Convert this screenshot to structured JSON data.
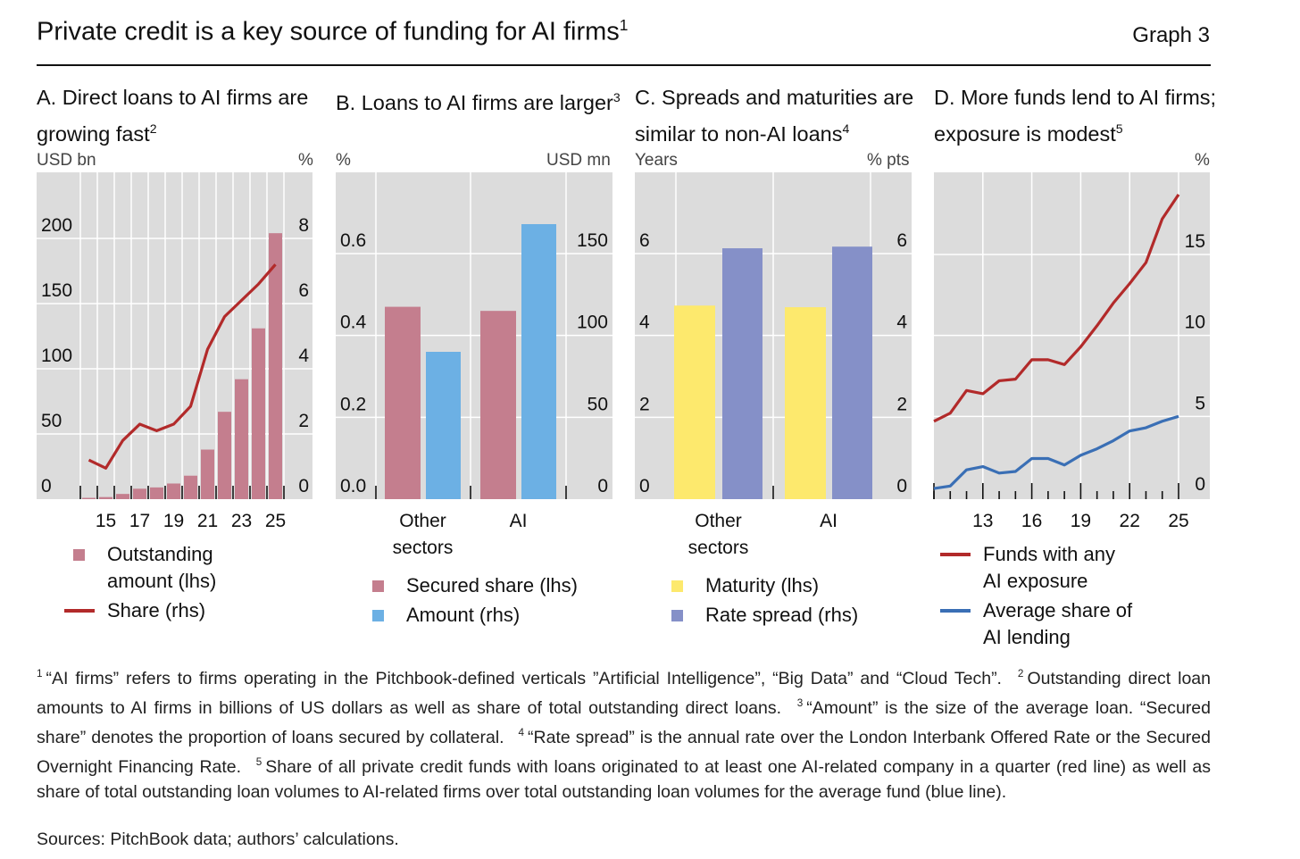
{
  "header": {
    "title": "Private credit is a key source of funding for AI firms",
    "title_sup": "1",
    "graph_label": "Graph 3"
  },
  "colors": {
    "panel_bg": "#dcdcdc",
    "grid": "#ffffff",
    "bar_red": "#c47e8e",
    "bar_blue": "#6cb0e4",
    "bar_yellow": "#fde96d",
    "bar_purple": "#8590c8",
    "line_red": "#b22a2a",
    "line_blue": "#3a6fb5"
  },
  "chart_data": [
    {
      "id": "A",
      "type": "bar+line",
      "title": "A. Direct loans to AI firms are growing fast",
      "title_sup": "2",
      "lhs_unit": "USD bn",
      "rhs_unit": "%",
      "x": [
        14,
        15,
        16,
        17,
        18,
        19,
        20,
        21,
        22,
        23,
        24,
        25
      ],
      "x_tick_labels": [
        "15",
        "17",
        "19",
        "21",
        "23",
        "25"
      ],
      "lhs_ticks": [
        "0",
        "50",
        "100",
        "150",
        "200"
      ],
      "lhs_range": [
        0,
        200
      ],
      "rhs_ticks": [
        "0",
        "2",
        "4",
        "6",
        "8"
      ],
      "rhs_range": [
        0,
        8
      ],
      "series": [
        {
          "name": "Outstanding amount (lhs)",
          "type": "bar",
          "axis": "lhs",
          "values": [
            1,
            1.6,
            4,
            8,
            9,
            12,
            18,
            38,
            67,
            92,
            131,
            204
          ]
        },
        {
          "name": "Share (rhs)",
          "type": "line",
          "axis": "rhs",
          "values": [
            1.2,
            0.95,
            1.8,
            2.3,
            2.1,
            2.3,
            2.85,
            4.6,
            5.6,
            6.1,
            6.6,
            7.2
          ]
        }
      ],
      "legend": [
        "Outstanding amount (lhs)",
        "Share (rhs)"
      ]
    },
    {
      "id": "B",
      "type": "bar",
      "title": "B. Loans to AI firms are larger",
      "title_sup": "3",
      "lhs_unit": "%",
      "rhs_unit": "USD mn",
      "categories": [
        "Other sectors",
        "AI"
      ],
      "lhs_ticks": [
        "0.0",
        "0.2",
        "0.4",
        "0.6"
      ],
      "lhs_range": [
        0,
        0.6
      ],
      "rhs_ticks": [
        "0",
        "50",
        "100",
        "150"
      ],
      "rhs_range": [
        0,
        150
      ],
      "series": [
        {
          "name": "Secured share (lhs)",
          "axis": "lhs",
          "values": [
            0.47,
            0.46
          ]
        },
        {
          "name": "Amount (rhs)",
          "axis": "rhs",
          "values": [
            90,
            168
          ]
        }
      ],
      "legend": [
        "Secured share (lhs)",
        "Amount (rhs)"
      ]
    },
    {
      "id": "C",
      "type": "bar",
      "title": "C. Spreads and maturities are similar to non-AI loans",
      "title_sup": "4",
      "lhs_unit": "Years",
      "rhs_unit": "% pts",
      "categories": [
        "Other sectors",
        "AI"
      ],
      "lhs_ticks": [
        "0",
        "2",
        "4",
        "6"
      ],
      "lhs_range": [
        0,
        6
      ],
      "rhs_ticks": [
        "0",
        "2",
        "4",
        "6"
      ],
      "rhs_range": [
        0,
        6
      ],
      "series": [
        {
          "name": "Maturity (lhs)",
          "axis": "lhs",
          "values": [
            4.73,
            4.69
          ]
        },
        {
          "name": "Rate spread (rhs)",
          "axis": "rhs",
          "values": [
            6.13,
            6.17
          ]
        }
      ],
      "legend": [
        "Maturity (lhs)",
        "Rate spread (rhs)"
      ]
    },
    {
      "id": "D",
      "type": "line",
      "title": "D. More funds lend to AI firms; exposure is modest",
      "title_sup": "5",
      "lhs_unit": "",
      "rhs_unit": "%",
      "x": [
        10,
        11,
        12,
        13,
        14,
        15,
        16,
        17,
        18,
        19,
        20,
        21,
        22,
        23,
        24,
        25
      ],
      "x_tick_labels": [
        "13",
        "16",
        "19",
        "22",
        "25"
      ],
      "rhs_ticks": [
        "0",
        "5",
        "10",
        "15"
      ],
      "rhs_range": [
        0,
        15
      ],
      "series": [
        {
          "name": "Funds with any AI exposure",
          "values": [
            4.7,
            5.2,
            6.6,
            6.4,
            7.2,
            7.3,
            8.5,
            8.5,
            8.2,
            9.3,
            10.6,
            12.0,
            13.2,
            14.5,
            17.2,
            18.7
          ]
        },
        {
          "name": "Average share of AI lending",
          "values": [
            0.55,
            0.7,
            1.7,
            1.9,
            1.5,
            1.6,
            2.4,
            2.4,
            2.0,
            2.6,
            3.0,
            3.5,
            4.1,
            4.3,
            4.7,
            5.0
          ]
        }
      ],
      "legend": [
        "Funds with any AI exposure",
        "Average share of AI lending"
      ]
    }
  ],
  "footnotes": [
    {
      "n": "1",
      "text": "“AI firms” refers to firms operating in the Pitchbook-defined verticals ”Artificial Intelligence”, “Big Data” and “Cloud Tech”."
    },
    {
      "n": "2",
      "text": "Outstanding direct loan amounts to AI firms in billions of US dollars as well as share of total outstanding direct loans."
    },
    {
      "n": "3",
      "text": "“Amount” is the size of the average loan. “Secured share” denotes the proportion of loans secured by collateral."
    },
    {
      "n": "4",
      "text": "“Rate spread” is the annual rate over the London Interbank Offered Rate or the Secured Overnight Financing Rate."
    },
    {
      "n": "5",
      "text": "Share of all private credit funds with loans originated to at least one AI-related company in a quarter (red line) as well as share of total outstanding loan volumes to AI-related firms over total outstanding loan volumes for the average fund (blue line)."
    }
  ],
  "sources": "Sources: PitchBook data; authors’ calculations."
}
